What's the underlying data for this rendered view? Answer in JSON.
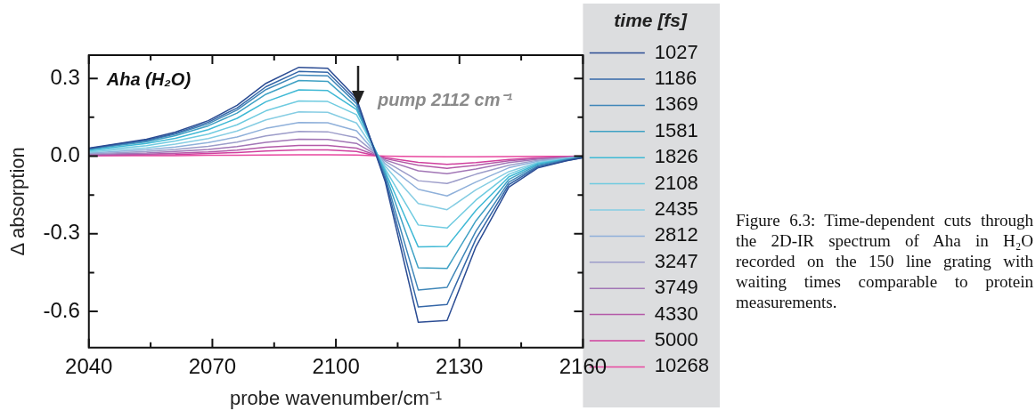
{
  "chart_data": {
    "type": "line",
    "xlabel": "probe wavenumber/cm⁻¹",
    "ylabel": "Δ absorption",
    "legend_title": "time [fs]",
    "legend": "right",
    "marker": "none",
    "line_style": "solid",
    "x": [
      2040,
      2047,
      2054,
      2061,
      2069,
      2076,
      2083,
      2091,
      2098,
      2105,
      2112,
      2120,
      2127,
      2134,
      2142,
      2149,
      2156,
      2160
    ],
    "xlim": [
      2040,
      2160
    ],
    "ylim": [
      -0.74,
      0.39
    ],
    "xticks": [
      2040,
      {
        "value": 2055,
        "label": null
      },
      2070,
      {
        "value": 2085,
        "label": null
      },
      2100,
      {
        "value": 2115,
        "label": null
      },
      2130,
      {
        "value": 2145,
        "label": null
      },
      2160
    ],
    "yticks": [
      {
        "value": -0.6,
        "label": "-0.6"
      },
      {
        "value": -0.45,
        "label": null
      },
      {
        "value": -0.3,
        "label": "-0.3"
      },
      {
        "value": -0.15,
        "label": null
      },
      {
        "value": 0,
        "label": "0.0"
      },
      {
        "value": 0.15,
        "label": null
      },
      {
        "value": 0.3,
        "label": "0.3"
      }
    ],
    "annotations": [
      "Aha (H₂O)",
      "pump 2112 cm⁻¹",
      "Figure 6.3: Time-dependent cuts through the 2D-IR spectrum of Aha in H₂O recorded on the 150 line grating with waiting times comparable to protein measurements."
    ],
    "series": [
      {
        "name": "1027",
        "color": "#2b4c93",
        "values": [
          0.031,
          0.048,
          0.065,
          0.093,
          0.137,
          0.196,
          0.281,
          0.343,
          0.339,
          0.223,
          -0.1,
          -0.642,
          -0.635,
          -0.35,
          -0.12,
          -0.046,
          -0.018,
          -0.006
        ]
      },
      {
        "name": "1186",
        "color": "#3567a8",
        "values": [
          0.029,
          0.046,
          0.062,
          0.088,
          0.131,
          0.186,
          0.268,
          0.327,
          0.324,
          0.213,
          -0.09,
          -0.583,
          -0.573,
          -0.32,
          -0.11,
          -0.042,
          -0.017,
          -0.006
        ]
      },
      {
        "name": "1369",
        "color": "#3f86b8",
        "values": [
          0.028,
          0.044,
          0.059,
          0.085,
          0.125,
          0.178,
          0.257,
          0.313,
          0.31,
          0.203,
          -0.08,
          -0.517,
          -0.507,
          -0.29,
          -0.1,
          -0.038,
          -0.015,
          -0.005
        ]
      },
      {
        "name": "1581",
        "color": "#3fa1c4",
        "values": [
          0.026,
          0.041,
          0.055,
          0.079,
          0.117,
          0.166,
          0.239,
          0.292,
          0.289,
          0.19,
          -0.07,
          -0.431,
          -0.434,
          -0.25,
          -0.09,
          -0.034,
          -0.013,
          -0.004
        ]
      },
      {
        "name": "1826",
        "color": "#3fb9d5",
        "values": [
          0.023,
          0.036,
          0.049,
          0.069,
          0.102,
          0.146,
          0.21,
          0.256,
          0.253,
          0.18,
          -0.06,
          -0.351,
          -0.349,
          -0.21,
          -0.08,
          -0.03,
          -0.012,
          -0.004
        ]
      },
      {
        "name": "2108",
        "color": "#6fcbe0",
        "values": [
          0.019,
          0.03,
          0.04,
          0.058,
          0.085,
          0.121,
          0.175,
          0.213,
          0.211,
          0.16,
          -0.05,
          -0.266,
          -0.278,
          -0.17,
          -0.07,
          -0.027,
          -0.011,
          -0.004
        ]
      },
      {
        "name": "2435",
        "color": "#86cde3",
        "values": [
          0.015,
          0.024,
          0.032,
          0.046,
          0.068,
          0.097,
          0.14,
          0.171,
          0.169,
          0.128,
          -0.04,
          -0.183,
          -0.207,
          -0.13,
          -0.06,
          -0.024,
          -0.01,
          -0.003
        ]
      },
      {
        "name": "2812",
        "color": "#8fb0da",
        "values": [
          0.012,
          0.018,
          0.025,
          0.035,
          0.052,
          0.074,
          0.107,
          0.13,
          0.129,
          0.098,
          -0.03,
          -0.128,
          -0.154,
          -0.1,
          -0.045,
          -0.02,
          -0.008,
          -0.003
        ]
      },
      {
        "name": "3247",
        "color": "#9c9cc9",
        "values": [
          0.009,
          0.013,
          0.018,
          0.026,
          0.038,
          0.054,
          0.078,
          0.095,
          0.094,
          0.071,
          -0.02,
          -0.095,
          -0.106,
          -0.07,
          -0.035,
          -0.016,
          -0.007,
          -0.002
        ]
      },
      {
        "name": "3749",
        "color": "#a276b6",
        "values": [
          0.006,
          0.009,
          0.012,
          0.018,
          0.026,
          0.037,
          0.053,
          0.065,
          0.064,
          0.049,
          -0.015,
          -0.057,
          -0.068,
          -0.05,
          -0.025,
          -0.012,
          -0.005,
          -0.002
        ]
      },
      {
        "name": "4330",
        "color": "#b45aa8",
        "values": [
          0.004,
          0.006,
          0.008,
          0.011,
          0.016,
          0.023,
          0.034,
          0.041,
          0.041,
          0.031,
          -0.01,
          -0.035,
          -0.047,
          -0.035,
          -0.018,
          -0.009,
          -0.004,
          -0.001
        ]
      },
      {
        "name": "5000",
        "color": "#d0409e",
        "values": [
          0.002,
          0.003,
          0.005,
          0.006,
          0.01,
          0.014,
          0.02,
          0.024,
          0.024,
          0.018,
          -0.006,
          -0.024,
          -0.032,
          -0.025,
          -0.013,
          -0.007,
          -0.003,
          -0.001
        ]
      },
      {
        "name": "10268",
        "color": "#e8479f",
        "values": [
          0.002,
          0.002,
          0.002,
          0.002,
          0.003,
          0.003,
          0.004,
          0.005,
          0.005,
          0.004,
          0,
          -0.002,
          -0.003,
          -0.003,
          -0.002,
          -0.001,
          -0.001,
          0
        ]
      }
    ]
  }
}
